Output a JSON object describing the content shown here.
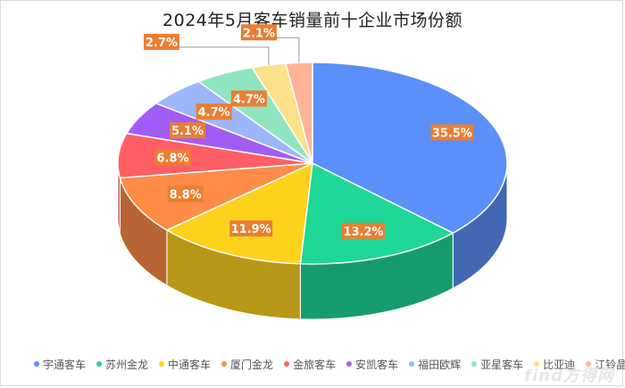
{
  "chart_data": {
    "type": "pie",
    "title": "2024年5月客车销量前十企业市场份额",
    "unit": "%",
    "slices": [
      {
        "name": "宇通客车",
        "value": 35.5,
        "label": "35.5%",
        "color": "#5b8ff9"
      },
      {
        "name": "苏州金龙",
        "value": 13.2,
        "label": "13.2%",
        "color": "#1fd796"
      },
      {
        "name": "中通客车",
        "value": 11.9,
        "label": "11.9%",
        "color": "#ffd21e"
      },
      {
        "name": "厦门金龙",
        "value": 8.8,
        "label": "8.8%",
        "color": "#ff8c47"
      },
      {
        "name": "金旅客车",
        "value": 6.8,
        "label": "6.8%",
        "color": "#ff5f64"
      },
      {
        "name": "安凯客车",
        "value": 5.1,
        "label": "5.1%",
        "color": "#a25cf6"
      },
      {
        "name": "福田欧辉",
        "value": 4.7,
        "label": "4.7%",
        "color": "#9db6fb"
      },
      {
        "name": "亚星客车",
        "value": 4.7,
        "label": "4.7%",
        "color": "#8fe5bf"
      },
      {
        "name": "比亚迪",
        "value": 2.7,
        "label": "2.7%",
        "color": "#fde08a"
      },
      {
        "name": "江铃晶马",
        "value": 2.1,
        "label": "2.1%",
        "color": "#ffb396"
      }
    ],
    "legend_position": "bottom"
  },
  "watermark": "find方得网",
  "style": {
    "label_bg": "#ed7d31",
    "label_text": "#ffffff"
  }
}
